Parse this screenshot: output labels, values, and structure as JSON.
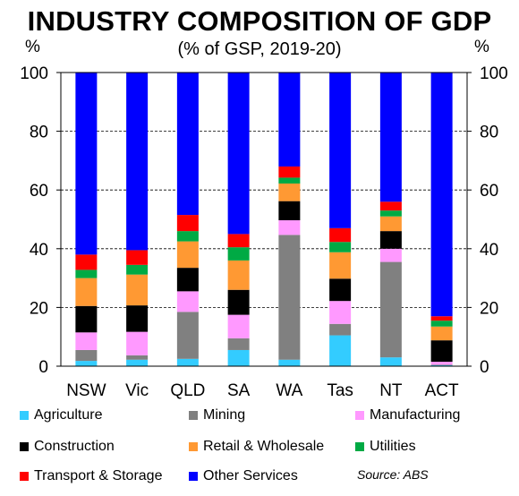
{
  "chart_data": {
    "type": "bar",
    "stacked": true,
    "title": "INDUSTRY COMPOSITION OF GDP",
    "subtitle": "(% of GSP, 2019-20)",
    "ylabel_left": "%",
    "ylabel_right": "%",
    "ylim": [
      0,
      100
    ],
    "yticks": [
      0,
      20,
      40,
      60,
      80,
      100
    ],
    "grid": true,
    "legend_position": "bottom",
    "categories": [
      "NSW",
      "Vic",
      "QLD",
      "SA",
      "WA",
      "Tas",
      "NT",
      "ACT"
    ],
    "series": [
      {
        "name": "Agriculture",
        "color": "#33CCFF",
        "values": [
          1.8,
          2.2,
          2.5,
          5.5,
          2.2,
          10.5,
          3.0,
          0.3
        ]
      },
      {
        "name": "Mining",
        "color": "#808080",
        "values": [
          3.7,
          1.5,
          16.0,
          4.0,
          42.5,
          3.9,
          32.5,
          0.2
        ]
      },
      {
        "name": "Manufacturing",
        "color": "#FF99FF",
        "values": [
          6.0,
          8.0,
          7.0,
          8.0,
          5.0,
          7.8,
          4.5,
          1.0
        ]
      },
      {
        "name": "Construction",
        "color": "#000000",
        "values": [
          9.0,
          9.0,
          8.0,
          8.5,
          6.5,
          7.6,
          6.0,
          7.3
        ]
      },
      {
        "name": "Retail & Wholesale",
        "color": "#FF9933",
        "values": [
          9.5,
          10.5,
          9.0,
          10.0,
          6.0,
          9.0,
          5.0,
          4.7
        ]
      },
      {
        "name": "Utilities",
        "color": "#00AA44",
        "values": [
          2.8,
          3.3,
          3.5,
          4.5,
          2.0,
          3.5,
          2.0,
          2.0
        ]
      },
      {
        "name": "Transport & Storage",
        "color": "#FF0000",
        "values": [
          5.2,
          5.0,
          5.5,
          4.5,
          3.8,
          4.7,
          3.0,
          1.5
        ]
      },
      {
        "name": "Other Services",
        "color": "#0000FF",
        "values": [
          62.0,
          60.5,
          48.5,
          55.0,
          32.0,
          53.0,
          44.0,
          83.0
        ]
      }
    ],
    "source": "Source: ABS"
  }
}
